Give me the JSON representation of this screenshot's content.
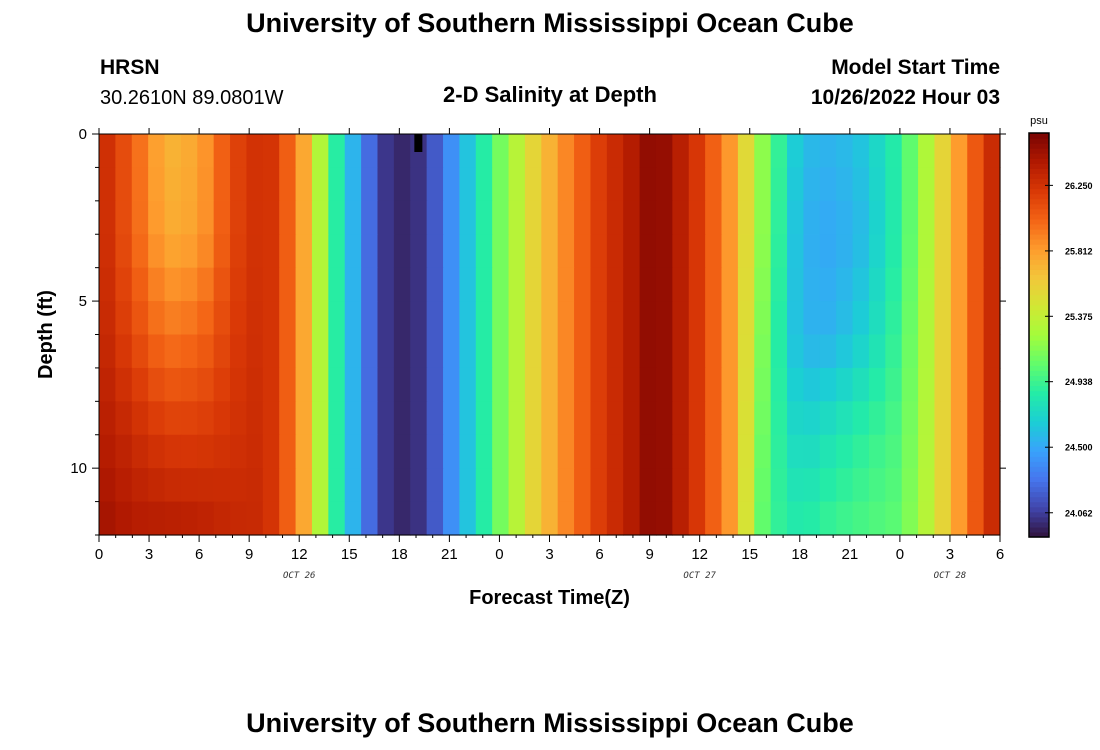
{
  "header": {
    "title": "University of Southern Mississippi Ocean Cube",
    "station": "HRSN",
    "coords": "30.2610N  89.0801W",
    "subtitle": "2-D Salinity at Depth",
    "model_start_label": "Model Start Time",
    "model_start_value": "10/26/2022 Hour 03"
  },
  "footer": {
    "title": "University of Southern Mississippi Ocean Cube"
  },
  "chart_data": {
    "type": "heatmap",
    "title": "2-D Salinity at Depth",
    "xlabel": "Forecast Time(Z)",
    "ylabel": "Depth (ft)",
    "x_tick_labels": [
      "0",
      "3",
      "6",
      "9",
      "12",
      "15",
      "18",
      "21",
      "0",
      "3",
      "6",
      "9",
      "12",
      "15",
      "18",
      "21",
      "0",
      "3",
      "6"
    ],
    "x_hours": [
      0,
      3,
      6,
      9,
      12,
      15,
      18,
      21,
      24,
      27,
      30,
      33,
      36,
      39,
      42,
      45,
      48,
      51,
      54
    ],
    "x_range_hours": [
      0,
      54
    ],
    "date_labels": [
      {
        "text": "OCT 26",
        "hour": 12
      },
      {
        "text": "OCT 27",
        "hour": 36
      },
      {
        "text": "OCT 28",
        "hour": 51
      }
    ],
    "y_tick_labels": [
      "0",
      "5",
      "10"
    ],
    "y_ticks": [
      0,
      5,
      10
    ],
    "y_range_ft": [
      0,
      12
    ],
    "colorbar": {
      "unit": "psu",
      "labels": [
        "26.250",
        "25.812",
        "25.375",
        "24.938",
        "24.500",
        "24.062"
      ],
      "ticks": [
        26.25,
        25.812,
        25.375,
        24.938,
        24.5,
        24.062
      ],
      "range": [
        23.9,
        26.6
      ]
    },
    "colormap": [
      "#30123b",
      "#4145ab",
      "#4675ed",
      "#39a2fc",
      "#1bcfd4",
      "#24eca6",
      "#61fc6c",
      "#a4fc3b",
      "#d1e834",
      "#f3c63a",
      "#fe9b2d",
      "#f36315",
      "#d93806",
      "#b11901",
      "#7a0403"
    ],
    "depth_levels_ft": [
      0,
      3,
      6,
      9,
      12
    ],
    "salinity_time_hours": [
      0,
      2,
      4,
      6,
      8,
      10,
      12,
      14,
      16,
      17,
      18,
      19,
      20,
      22,
      24,
      26,
      28,
      30,
      32,
      33,
      34,
      36,
      38,
      40,
      42,
      44,
      46,
      48,
      50,
      52,
      54
    ],
    "salinity_psu": [
      [
        26.33,
        26.05,
        25.7,
        25.78,
        26.15,
        26.3,
        25.9,
        24.95,
        24.3,
        24.05,
        23.98,
        24.0,
        24.15,
        24.6,
        25.1,
        25.55,
        25.9,
        26.2,
        26.4,
        26.53,
        26.5,
        26.2,
        25.8,
        25.1,
        24.6,
        24.55,
        24.65,
        24.9,
        25.4,
        25.95,
        26.4
      ],
      [
        26.33,
        26.05,
        25.75,
        25.8,
        26.15,
        26.3,
        25.9,
        24.95,
        24.3,
        24.05,
        23.98,
        24.0,
        24.15,
        24.6,
        25.1,
        25.55,
        25.9,
        26.2,
        26.4,
        26.53,
        26.5,
        26.2,
        25.8,
        25.1,
        24.55,
        24.5,
        24.6,
        24.9,
        25.4,
        25.95,
        26.4
      ],
      [
        26.35,
        26.15,
        25.95,
        26.0,
        26.2,
        26.3,
        25.9,
        24.95,
        24.3,
        24.05,
        23.98,
        24.0,
        24.15,
        24.6,
        25.1,
        25.55,
        25.9,
        26.2,
        26.4,
        26.53,
        26.5,
        26.2,
        25.8,
        25.05,
        24.55,
        24.55,
        24.7,
        24.95,
        25.4,
        25.95,
        26.4
      ],
      [
        26.4,
        26.3,
        26.2,
        26.2,
        26.25,
        26.3,
        25.9,
        24.95,
        24.3,
        24.05,
        23.98,
        24.0,
        24.15,
        24.6,
        25.1,
        25.55,
        25.9,
        26.2,
        26.4,
        26.53,
        26.5,
        26.2,
        25.8,
        25.0,
        24.7,
        24.8,
        24.9,
        25.0,
        25.4,
        25.95,
        26.4
      ],
      [
        26.48,
        26.4,
        26.4,
        26.38,
        26.32,
        26.3,
        25.9,
        24.95,
        24.3,
        24.05,
        23.98,
        24.0,
        24.15,
        24.6,
        25.1,
        25.55,
        25.9,
        26.2,
        26.4,
        26.53,
        26.5,
        26.2,
        25.8,
        24.95,
        24.85,
        24.95,
        25.0,
        25.05,
        25.4,
        25.95,
        26.4
      ]
    ]
  }
}
